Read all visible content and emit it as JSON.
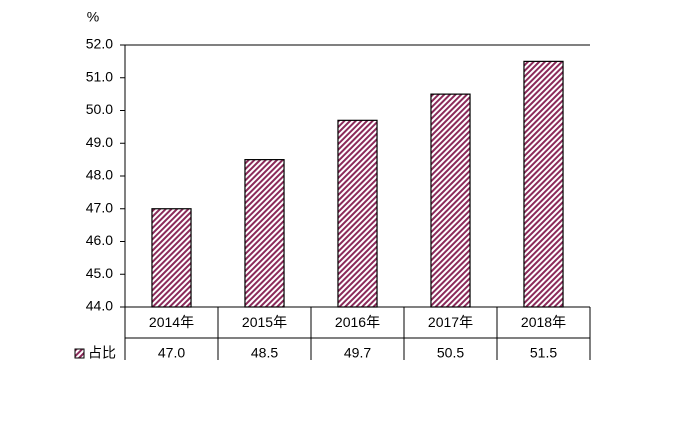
{
  "chart_data": {
    "type": "bar",
    "y_label": "%",
    "categories": [
      "2014年",
      "2015年",
      "2016年",
      "2017年",
      "2018年"
    ],
    "series": [
      {
        "name": "占比",
        "color": "#8b2a5a",
        "values": [
          47.0,
          48.5,
          49.7,
          50.5,
          51.5
        ],
        "value_labels": [
          "47.0",
          "48.5",
          "49.7",
          "50.5",
          "51.5"
        ]
      }
    ],
    "ylim": [
      44,
      52
    ],
    "yticks": [
      {
        "value": 44,
        "label": "44.0"
      },
      {
        "value": 45,
        "label": "45.0"
      },
      {
        "value": 46,
        "label": "46.0"
      },
      {
        "value": 47,
        "label": "47.0"
      },
      {
        "value": 48,
        "label": "48.0"
      },
      {
        "value": 49,
        "label": "49.0"
      },
      {
        "value": 50,
        "label": "50.0"
      },
      {
        "value": 51,
        "label": "51.0"
      },
      {
        "value": 52,
        "label": "52.0"
      }
    ],
    "grid": false,
    "data_table": true
  }
}
